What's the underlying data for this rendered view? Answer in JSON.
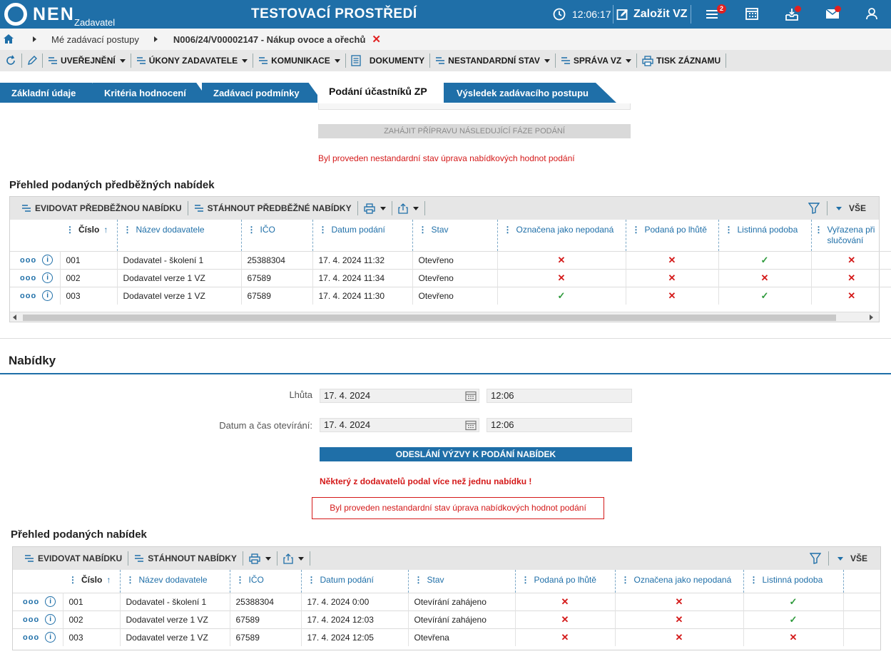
{
  "header": {
    "logo_text": "NEN",
    "logo_sub": "Zadavatel",
    "env_title": "TESTOVACÍ PROSTŘEDÍ",
    "time": "12:06:17",
    "new_vz": "Založit VZ",
    "menu_badge": "2"
  },
  "breadcrumb": {
    "item1": "Mé zadávací postupy",
    "item2": "N006/24/V00002147 - Nákup ovoce a ořechů"
  },
  "toolbar": {
    "uverejneni": "UVEŘEJNĚNÍ",
    "ukony": "ÚKONY ZADAVATELE",
    "komunikace": "KOMUNIKACE",
    "dokumenty": "DOKUMENTY",
    "nestandardni": "NESTANDARDNÍ STAV",
    "sprava": "SPRÁVA VZ",
    "tisk": "TISK ZÁZNAMU"
  },
  "tabs": [
    {
      "label": "Základní údaje"
    },
    {
      "label": "Kritéria hodnocení"
    },
    {
      "label": "Zadávací podmínky"
    },
    {
      "label": "Podání účastníků ZP"
    },
    {
      "label": "Výsledek zadávacího postupu"
    }
  ],
  "section1": {
    "prep_button": "ZAHÁJIT PŘÍPRAVU NÁSLEDUJÍCÍ FÁZE PODÁNÍ",
    "warning": "Byl proveden nestandardní stav úprava nabídkových hodnot podání",
    "grid_title": "Přehled podaných předběžných nabídek",
    "evidovat": "EVIDOVAT PŘEDBĚŽNOU NABÍDKU",
    "stahnout": "STÁHNOUT PŘEDBĚŽNÉ NABÍDKY",
    "vse": "VŠE",
    "columns": [
      "Číslo",
      "Název dodavatele",
      "IČO",
      "Datum podání",
      "Stav",
      "Označena jako nepodaná",
      "Podaná po lhůtě",
      "Listinná podoba",
      "Vyřazena při slučování"
    ],
    "rows": [
      {
        "cislo": "001",
        "nazev": "Dodavatel - školení 1",
        "ico": "25388304",
        "datum": "17. 4. 2024 11:32",
        "stav": "Otevřeno",
        "nepodana": "✕",
        "polhute": "✕",
        "listinna": "✓",
        "vyrazena": "✕"
      },
      {
        "cislo": "002",
        "nazev": "Dodavatel verze 1 VZ",
        "ico": "67589",
        "datum": "17. 4. 2024 11:34",
        "stav": "Otevřeno",
        "nepodana": "✕",
        "polhute": "✕",
        "listinna": "✕",
        "vyrazena": "✕"
      },
      {
        "cislo": "003",
        "nazev": "Dodavatel verze 1 VZ",
        "ico": "67589",
        "datum": "17. 4. 2024 11:30",
        "stav": "Otevřeno",
        "nepodana": "✓",
        "polhute": "✕",
        "listinna": "✓",
        "vyrazena": "✕"
      }
    ]
  },
  "section2": {
    "title": "Nabídky",
    "lhuta_label": "Lhůta",
    "lhuta_date": "17. 4. 2024",
    "lhuta_time": "12:06",
    "otevirani_label": "Datum a čas otevírání:",
    "otevirani_date": "17. 4. 2024",
    "otevirani_time": "12:06",
    "send_button": "ODESLÁNÍ VÝZVY K PODÁNÍ NABÍDEK",
    "warning1": "Některý z dodavatelů podal více než jednu nabídku !",
    "warning2": "Byl proveden nestandardní stav úprava nabídkových hodnot podání",
    "grid_title": "Přehled podaných nabídek",
    "evidovat": "EVIDOVAT NABÍDKU",
    "stahnout": "STÁHNOUT NABÍDKY",
    "vse": "VŠE",
    "columns": [
      "Číslo",
      "Název dodavatele",
      "IČO",
      "Datum podání",
      "Stav",
      "Podaná po lhůtě",
      "Označena jako nepodaná",
      "Listinná podoba"
    ],
    "rows": [
      {
        "cislo": "001",
        "nazev": "Dodavatel - školení 1",
        "ico": "25388304",
        "datum": "17. 4. 2024 0:00",
        "stav": "Otevírání zahájeno",
        "polhute": "✕",
        "nepodana": "✕",
        "listinna": "✓"
      },
      {
        "cislo": "002",
        "nazev": "Dodavatel verze 1 VZ",
        "ico": "67589",
        "datum": "17. 4. 2024 12:03",
        "stav": "Otevírání zahájeno",
        "polhute": "✕",
        "nepodana": "✕",
        "listinna": "✓"
      },
      {
        "cislo": "003",
        "nazev": "Dodavatel verze 1 VZ",
        "ico": "67589",
        "datum": "17. 4. 2024 12:05",
        "stav": "Otevřena",
        "polhute": "✕",
        "nepodana": "✕",
        "listinna": "✕"
      }
    ]
  },
  "colors": {
    "primary": "#1f6fa8",
    "error": "#d41919",
    "success": "#2e9a3c"
  }
}
